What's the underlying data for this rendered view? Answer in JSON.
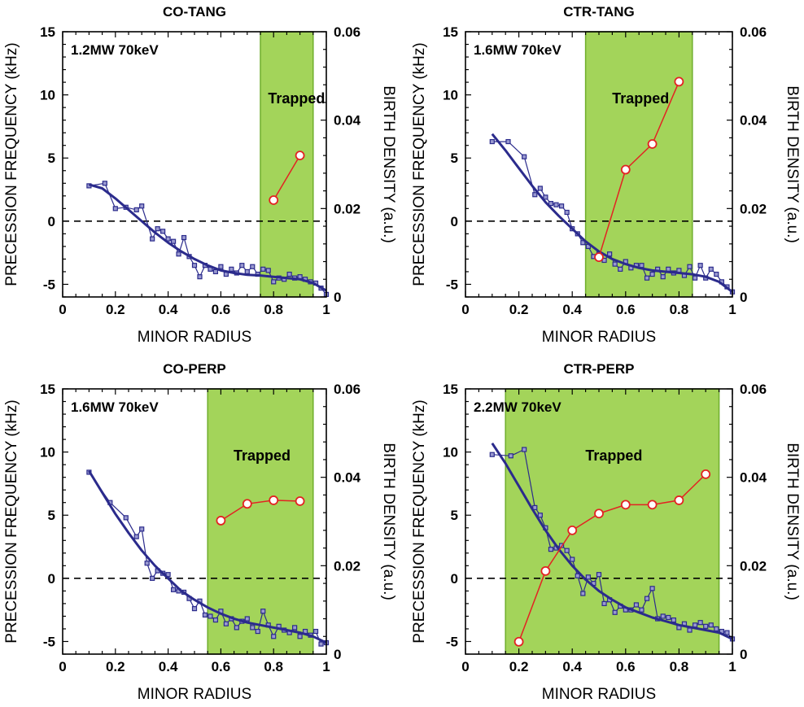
{
  "colors": {
    "region_fill": "#a3d45a",
    "region_stroke": "#6fae2c",
    "freq_color": "#2b2b8c",
    "birth_color": "#e32222"
  },
  "chart_data": [
    {
      "type": "line",
      "title": "CO-TANG",
      "annotation": "1.2MW 70keV",
      "region_label": "Trapped",
      "xlabel": "MINOR RADIUS",
      "ylabel": "PRECESSION FREQUENCY (kHz)",
      "y2label": "BIRTH DENSITY (a.u.)",
      "xlim": [
        0,
        1
      ],
      "ylim": [
        -6,
        15
      ],
      "y2lim": [
        0,
        0.06
      ],
      "xticks": [
        "0",
        "0.2",
        "0.4",
        "0.6",
        "0.8",
        "1"
      ],
      "yticks": [
        "-5",
        "0",
        "5",
        "10",
        "15"
      ],
      "y2ticks": [
        "0",
        "0.02",
        "0.04",
        "0.06"
      ],
      "shaded_region": [
        0.75,
        0.95
      ],
      "zero_line": 0,
      "series": [
        {
          "role": "precession_data",
          "axis": "left",
          "x": [
            0.1,
            0.16,
            0.2,
            0.24,
            0.28,
            0.3,
            0.34,
            0.36,
            0.38,
            0.4,
            0.42,
            0.44,
            0.46,
            0.48,
            0.5,
            0.52,
            0.54,
            0.56,
            0.58,
            0.6,
            0.62,
            0.64,
            0.66,
            0.68,
            0.7,
            0.72,
            0.74,
            0.76,
            0.78,
            0.8,
            0.82,
            0.84,
            0.86,
            0.88,
            0.9,
            0.92,
            0.94,
            0.96,
            0.98,
            1.0
          ],
          "y": [
            2.8,
            3.0,
            1.0,
            1.1,
            0.9,
            1.2,
            -1.4,
            -0.6,
            -0.8,
            -1.4,
            -1.6,
            -2.6,
            -1.3,
            -2.8,
            -3.5,
            -4.4,
            -3.5,
            -3.8,
            -4.0,
            -3.6,
            -4.2,
            -3.8,
            -4.1,
            -3.5,
            -4.0,
            -3.6,
            -4.2,
            -3.8,
            -3.9,
            -4.8,
            -4.5,
            -4.6,
            -4.2,
            -4.5,
            -4.4,
            -4.6,
            -4.8,
            -4.9,
            -5.3,
            -5.8
          ]
        },
        {
          "role": "precession_fit",
          "axis": "left",
          "x": [
            0.1,
            0.15,
            0.2,
            0.25,
            0.3,
            0.35,
            0.4,
            0.45,
            0.5,
            0.55,
            0.6,
            0.65,
            0.7,
            0.75,
            0.8,
            0.85,
            0.9,
            0.95,
            1.0
          ],
          "y": [
            2.9,
            2.6,
            1.8,
            0.9,
            0.0,
            -0.9,
            -1.7,
            -2.4,
            -3.0,
            -3.5,
            -3.9,
            -4.1,
            -4.25,
            -4.3,
            -4.4,
            -4.5,
            -4.6,
            -4.9,
            -5.5
          ]
        },
        {
          "role": "birth_density",
          "axis": "right",
          "x": [
            0.8,
            0.9
          ],
          "y": [
            0.0219,
            0.032
          ]
        }
      ]
    },
    {
      "type": "line",
      "title": "CTR-TANG",
      "annotation": "1.6MW 70keV",
      "region_label": "Trapped",
      "xlabel": "MINOR RADIUS",
      "ylabel": "PRECESSION FREQUENCY (kHz)",
      "y2label": "BIRTH DENSITY (a.u.)",
      "xlim": [
        0,
        1
      ],
      "ylim": [
        -6,
        15
      ],
      "y2lim": [
        0,
        0.06
      ],
      "xticks": [
        "0",
        "0.2",
        "0.4",
        "0.6",
        "0.8",
        "1"
      ],
      "yticks": [
        "-5",
        "0",
        "5",
        "10",
        "15"
      ],
      "y2ticks": [
        "0",
        "0.02",
        "0.04",
        "0.06"
      ],
      "shaded_region": [
        0.45,
        0.85
      ],
      "zero_line": 0,
      "series": [
        {
          "role": "precession_data",
          "axis": "left",
          "x": [
            0.1,
            0.16,
            0.22,
            0.26,
            0.28,
            0.3,
            0.32,
            0.34,
            0.36,
            0.38,
            0.4,
            0.42,
            0.44,
            0.46,
            0.48,
            0.5,
            0.52,
            0.54,
            0.56,
            0.58,
            0.6,
            0.62,
            0.64,
            0.66,
            0.68,
            0.7,
            0.72,
            0.74,
            0.76,
            0.78,
            0.8,
            0.82,
            0.84,
            0.86,
            0.88,
            0.9,
            0.92,
            0.94,
            0.96,
            0.98,
            1.0
          ],
          "y": [
            6.3,
            6.3,
            5.1,
            2.1,
            2.6,
            1.9,
            1.4,
            1.3,
            1.2,
            0.7,
            -0.6,
            -1.0,
            -1.7,
            -2.0,
            -2.8,
            -2.6,
            -3.1,
            -2.6,
            -3.4,
            -3.8,
            -3.2,
            -3.7,
            -3.5,
            -3.5,
            -4.5,
            -4.2,
            -3.8,
            -4.4,
            -3.8,
            -4.1,
            -3.9,
            -4.3,
            -3.6,
            -4.5,
            -3.5,
            -4.5,
            -3.8,
            -4.2,
            -4.8,
            -5.2,
            -5.6
          ]
        },
        {
          "role": "precession_fit",
          "axis": "left",
          "x": [
            0.1,
            0.15,
            0.2,
            0.25,
            0.3,
            0.35,
            0.4,
            0.45,
            0.5,
            0.55,
            0.6,
            0.65,
            0.7,
            0.75,
            0.8,
            0.85,
            0.9,
            0.95,
            1.0
          ],
          "y": [
            6.9,
            5.6,
            4.2,
            2.8,
            1.5,
            0.4,
            -0.6,
            -1.6,
            -2.4,
            -3.0,
            -3.4,
            -3.7,
            -3.9,
            -4.0,
            -4.1,
            -4.2,
            -4.4,
            -4.8,
            -5.6
          ]
        },
        {
          "role": "birth_density",
          "axis": "right",
          "x": [
            0.5,
            0.6,
            0.7,
            0.8
          ],
          "y": [
            0.009,
            0.0288,
            0.0346,
            0.0487
          ]
        }
      ]
    },
    {
      "type": "line",
      "title": "CO-PERP",
      "annotation": "1.6MW 70keV",
      "region_label": "Trapped",
      "xlabel": "MINOR RADIUS",
      "ylabel": "PRECESSION FREQUENCY (kHz)",
      "y2label": "BIRTH DENSITY (a.u.)",
      "xlim": [
        0,
        1
      ],
      "ylim": [
        -6,
        15
      ],
      "y2lim": [
        0,
        0.06
      ],
      "xticks": [
        "0",
        "0.2",
        "0.4",
        "0.6",
        "0.8",
        "1"
      ],
      "yticks": [
        "-5",
        "0",
        "5",
        "10",
        "15"
      ],
      "y2ticks": [
        "0",
        "0.02",
        "0.04",
        "0.06"
      ],
      "shaded_region": [
        0.55,
        0.95
      ],
      "zero_line": 0,
      "series": [
        {
          "role": "precession_data",
          "axis": "left",
          "x": [
            0.1,
            0.18,
            0.24,
            0.28,
            0.3,
            0.32,
            0.34,
            0.36,
            0.38,
            0.4,
            0.42,
            0.44,
            0.46,
            0.48,
            0.5,
            0.52,
            0.54,
            0.56,
            0.58,
            0.6,
            0.62,
            0.64,
            0.66,
            0.68,
            0.7,
            0.72,
            0.74,
            0.76,
            0.78,
            0.8,
            0.82,
            0.84,
            0.86,
            0.88,
            0.9,
            0.92,
            0.94,
            0.96,
            0.98,
            1.0
          ],
          "y": [
            8.4,
            6.0,
            4.8,
            3.3,
            3.9,
            1.2,
            0.0,
            0.6,
            0.4,
            0.3,
            -0.9,
            -1.0,
            -1.1,
            -1.6,
            -2.4,
            -1.8,
            -2.9,
            -3.0,
            -3.3,
            -2.6,
            -3.6,
            -3.2,
            -3.9,
            -3.4,
            -3.2,
            -3.9,
            -4.2,
            -2.6,
            -3.7,
            -4.6,
            -3.8,
            -4.1,
            -4.3,
            -3.9,
            -4.6,
            -4.2,
            -4.5,
            -4.2,
            -5.2,
            -5.1
          ]
        },
        {
          "role": "precession_fit",
          "axis": "left",
          "x": [
            0.1,
            0.15,
            0.2,
            0.25,
            0.3,
            0.35,
            0.4,
            0.45,
            0.5,
            0.55,
            0.6,
            0.65,
            0.7,
            0.75,
            0.8,
            0.85,
            0.9,
            0.95,
            1.0
          ],
          "y": [
            8.5,
            6.8,
            5.1,
            3.6,
            2.2,
            1.0,
            0.0,
            -1.0,
            -1.7,
            -2.3,
            -2.8,
            -3.2,
            -3.5,
            -3.7,
            -3.9,
            -4.1,
            -4.3,
            -4.6,
            -5.1
          ]
        },
        {
          "role": "birth_density",
          "axis": "right",
          "x": [
            0.6,
            0.7,
            0.8,
            0.9
          ],
          "y": [
            0.0302,
            0.034,
            0.0348,
            0.0346
          ]
        }
      ]
    },
    {
      "type": "line",
      "title": "CTR-PERP",
      "annotation": "2.2MW 70keV",
      "region_label": "Trapped",
      "xlabel": "MINOR RADIUS",
      "ylabel": "PRECESSION FREQUENCY (kHz)",
      "y2label": "BIRTH DENSITY (a.u.)",
      "xlim": [
        0,
        1
      ],
      "ylim": [
        -6,
        15
      ],
      "y2lim": [
        0,
        0.06
      ],
      "xticks": [
        "0",
        "0.2",
        "0.4",
        "0.6",
        "0.8",
        "1"
      ],
      "yticks": [
        "-5",
        "0",
        "5",
        "10",
        "15"
      ],
      "y2ticks": [
        "0",
        "0.02",
        "0.04",
        "0.06"
      ],
      "shaded_region": [
        0.15,
        0.95
      ],
      "zero_line": 0,
      "series": [
        {
          "role": "precession_data",
          "axis": "left",
          "x": [
            0.1,
            0.17,
            0.22,
            0.26,
            0.28,
            0.3,
            0.32,
            0.34,
            0.36,
            0.38,
            0.4,
            0.42,
            0.44,
            0.46,
            0.48,
            0.5,
            0.52,
            0.54,
            0.56,
            0.58,
            0.6,
            0.62,
            0.64,
            0.66,
            0.68,
            0.7,
            0.72,
            0.74,
            0.76,
            0.78,
            0.8,
            0.82,
            0.84,
            0.86,
            0.88,
            0.9,
            0.92,
            0.94,
            0.96,
            0.98,
            1.0
          ],
          "y": [
            9.8,
            9.7,
            10.2,
            5.6,
            5.0,
            4.0,
            2.3,
            2.4,
            2.6,
            2.2,
            1.5,
            0.2,
            -1.2,
            0.1,
            -0.4,
            0.3,
            -2.0,
            -1.7,
            -2.7,
            -2.2,
            -2.5,
            -2.5,
            -2.1,
            -2.5,
            -1.6,
            -0.8,
            -3.2,
            -3.0,
            -3.1,
            -3.3,
            -3.9,
            -3.6,
            -4.1,
            -3.7,
            -3.5,
            -3.8,
            -3.7,
            -4.0,
            -4.2,
            -4.3,
            -4.8
          ]
        },
        {
          "role": "precession_fit",
          "axis": "left",
          "x": [
            0.1,
            0.15,
            0.2,
            0.25,
            0.3,
            0.35,
            0.4,
            0.45,
            0.5,
            0.55,
            0.6,
            0.65,
            0.7,
            0.75,
            0.8,
            0.85,
            0.9,
            0.95,
            1.0
          ],
          "y": [
            10.7,
            9.1,
            7.3,
            5.5,
            3.8,
            2.3,
            1.0,
            -0.1,
            -1.0,
            -1.7,
            -2.3,
            -2.7,
            -3.1,
            -3.4,
            -3.7,
            -3.9,
            -4.1,
            -4.3,
            -4.8
          ]
        },
        {
          "role": "birth_density",
          "axis": "right",
          "x": [
            0.2,
            0.3,
            0.4,
            0.5,
            0.6,
            0.7,
            0.8,
            0.9
          ],
          "y": [
            0.0028,
            0.0188,
            0.028,
            0.0318,
            0.0338,
            0.0338,
            0.0348,
            0.0407
          ]
        }
      ]
    }
  ]
}
